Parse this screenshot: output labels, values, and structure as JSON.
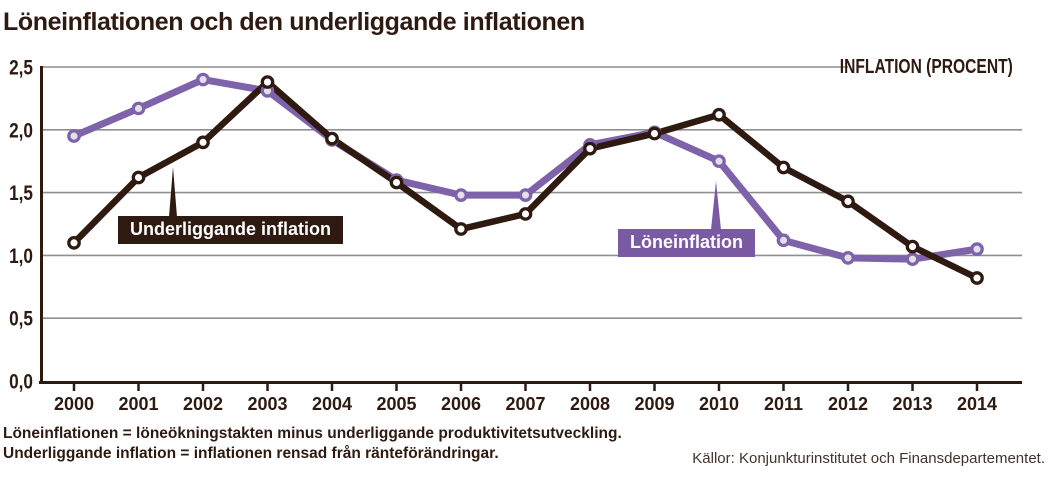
{
  "header": {
    "title": "Löneinflationen och den underliggande inflationen"
  },
  "chart_data": {
    "type": "line",
    "title": "Löneinflationen och den underliggande inflationen",
    "unit_label": "INFLATION (PROCENT)",
    "categories": [
      2000,
      2001,
      2002,
      2003,
      2004,
      2005,
      2006,
      2007,
      2008,
      2009,
      2010,
      2011,
      2012,
      2013,
      2014
    ],
    "series": [
      {
        "name": "Löneinflation",
        "color": "#7e63ab",
        "marker_fill": "#e3dfe9",
        "values": [
          1.95,
          2.17,
          2.4,
          2.31,
          1.92,
          1.6,
          1.48,
          1.48,
          1.88,
          1.98,
          1.75,
          1.12,
          0.98,
          0.97,
          1.05
        ]
      },
      {
        "name": "Underliggande inflation",
        "color": "#2e1a10",
        "marker_fill": "#ffffff",
        "values": [
          1.1,
          1.62,
          1.9,
          2.38,
          1.93,
          1.58,
          1.21,
          1.33,
          1.85,
          1.97,
          2.12,
          1.7,
          1.43,
          1.07,
          0.82
        ]
      }
    ],
    "ylim": [
      0,
      2.5
    ],
    "ytick_step": 0.5,
    "ytick_labels": [
      "0,0",
      "0,5",
      "1,0",
      "1,5",
      "2,0",
      "2,5"
    ],
    "grid": true,
    "legend_position": "callouts-on-plot",
    "annotations": [
      {
        "text": "Underliggande inflation",
        "points_to": "dark line between 2001 and 2002"
      },
      {
        "text": "Löneinflation",
        "points_to": "purple point at 2010"
      }
    ]
  },
  "footer": {
    "line1": "Löneinflationen = löneökningstakten minus underliggande produktivitetsutveckling.",
    "line2": "Underliggande inflation = inflationen rensad från ränteförändringar.",
    "sources": "Källor: Konjunkturinstitutet och Finansdepartementet."
  },
  "colors": {
    "ink": "#2e1a10",
    "purple_line": "#7e63ab",
    "purple_box": "#7a5aa3",
    "purple_marker_fill": "#e3dfe9",
    "dark_marker_fill": "#ffffff",
    "grid": "#8f8f8f",
    "background": "#ffffff"
  }
}
